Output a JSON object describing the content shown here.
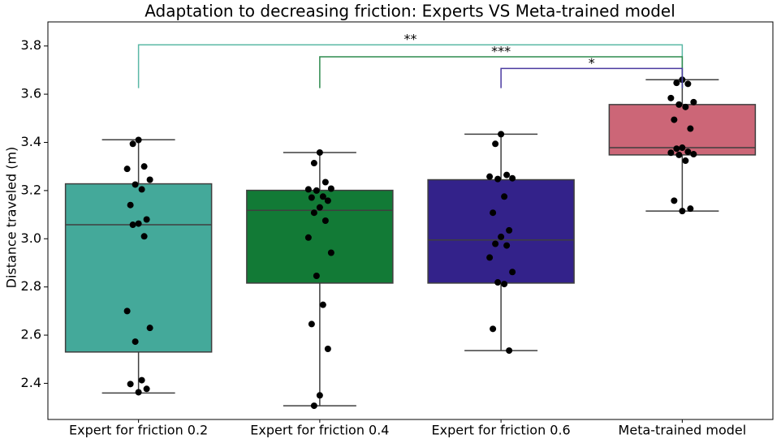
{
  "chart_data": {
    "type": "box",
    "title": "Adaptation to decreasing friction: Experts VS Meta-trained model",
    "y_label": "Distance traveled (m)",
    "categories": [
      "Expert for friction 0.2",
      "Expert for friction 0.4",
      "Expert for friction 0.6",
      "Meta-trained model"
    ],
    "colors": [
      "#44a99a",
      "#127a36",
      "#33228a",
      "#cc6677"
    ],
    "boxes": [
      {
        "whislo": 2.36,
        "q1": 2.53,
        "med": 3.058,
        "q3": 3.228,
        "whishi": 3.411
      },
      {
        "whislo": 2.307,
        "q1": 2.816,
        "med": 3.118,
        "q3": 3.201,
        "whishi": 3.358
      },
      {
        "whislo": 2.536,
        "q1": 2.816,
        "med": 2.995,
        "q3": 3.245,
        "whishi": 3.434
      },
      {
        "whislo": 3.115,
        "q1": 3.348,
        "med": 3.378,
        "q3": 3.557,
        "whishi": 3.66
      }
    ],
    "points": [
      [
        3.41,
        3.394,
        3.3,
        3.29,
        3.245,
        3.225,
        3.205,
        3.14,
        3.08,
        3.063,
        3.058,
        3.01,
        2.7,
        2.63,
        2.573,
        2.413,
        2.397,
        2.377,
        2.363
      ],
      [
        3.358,
        3.314,
        3.235,
        3.205,
        3.208,
        3.2,
        3.175,
        3.171,
        3.158,
        3.13,
        3.108,
        3.075,
        3.005,
        2.942,
        2.846,
        2.726,
        2.646,
        2.543,
        2.35,
        2.307
      ],
      [
        3.434,
        3.394,
        3.265,
        3.258,
        3.251,
        3.248,
        3.175,
        3.108,
        3.035,
        3.008,
        2.979,
        2.972,
        2.922,
        2.862,
        2.819,
        2.812,
        2.626,
        2.536
      ],
      [
        3.66,
        3.647,
        3.643,
        3.584,
        3.567,
        3.557,
        3.547,
        3.494,
        3.457,
        3.378,
        3.374,
        3.361,
        3.357,
        3.351,
        3.348,
        3.324,
        3.158,
        3.125,
        3.115
      ]
    ],
    "point_color": "#000000",
    "annotations": [
      {
        "text": "**",
        "from": 0,
        "to": 3,
        "y": 3.805,
        "bottom": 3.625,
        "color": "#5bb8a6"
      },
      {
        "text": "***",
        "from": 1,
        "to": 3,
        "y": 3.755,
        "bottom": 3.625,
        "color": "#2e8b4e"
      },
      {
        "text": "*",
        "from": 2,
        "to": 3,
        "y": 3.707,
        "bottom": 3.625,
        "color": "#4a3aa0"
      }
    ],
    "ylim": [
      2.25,
      3.9
    ],
    "yticks": [
      2.4,
      2.6,
      2.8,
      {
        "value": 3,
        "label": "3.0"
      },
      3.2,
      3.4,
      3.6,
      3.8
    ]
  }
}
